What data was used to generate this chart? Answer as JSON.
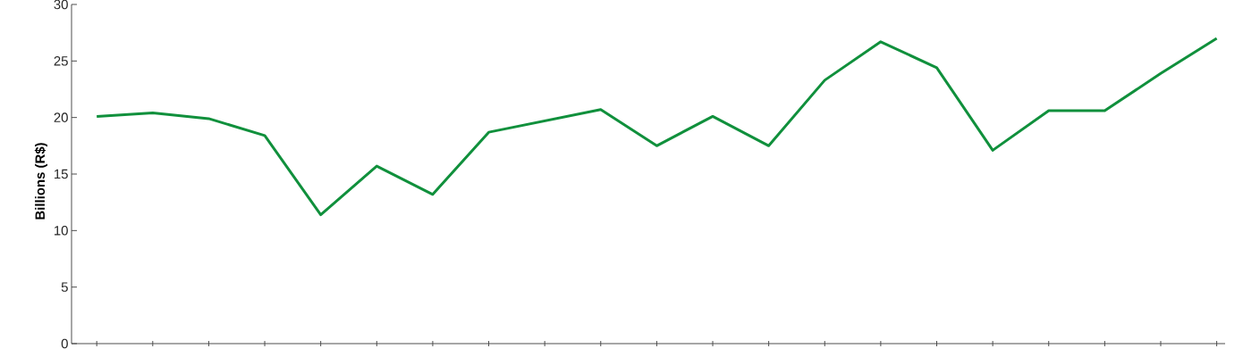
{
  "chart_data": {
    "type": "line",
    "ylabel": "Billions (R$)",
    "categories": [
      null,
      null,
      null,
      null,
      null,
      null,
      null,
      null,
      null,
      null,
      null,
      null,
      null,
      null,
      null,
      null,
      null,
      null,
      null,
      null,
      null
    ],
    "series": [
      {
        "color": "#10903c",
        "values": [
          20.1,
          20.4,
          19.9,
          18.4,
          11.4,
          15.7,
          13.2,
          18.7,
          19.7,
          20.7,
          17.5,
          20.1,
          17.5,
          23.3,
          26.7,
          24.4,
          17.1,
          20.6,
          20.6,
          23.9,
          27.0
        ]
      }
    ],
    "ylim": [
      0,
      30
    ],
    "yticks": [
      0,
      5,
      10,
      15,
      20,
      25,
      30
    ],
    "grid": false,
    "tick_labels": "y"
  }
}
